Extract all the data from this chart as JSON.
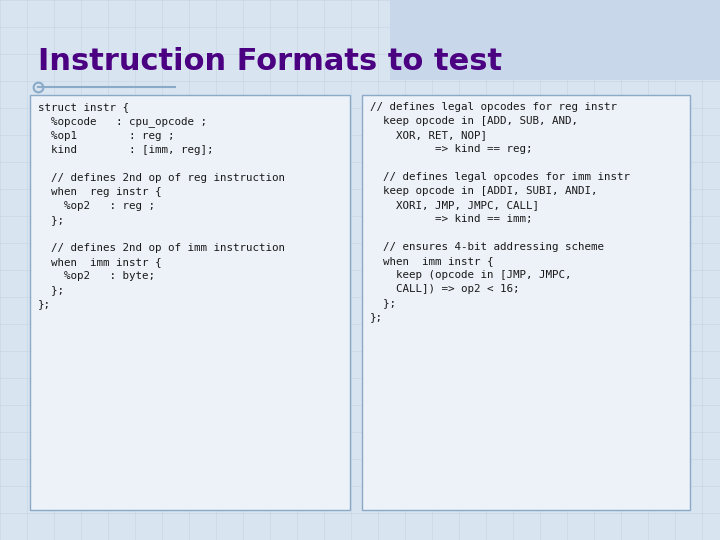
{
  "title": "Instruction Formats to test",
  "title_color": "#4B0082",
  "title_fontsize": 22,
  "bg_color": "#d8e4f0",
  "box_bg": "#edf2f8",
  "box_border": "#8aaac8",
  "grid_color": "#c5d5e5",
  "code_color": "#1a1a1a",
  "code_fontsize": 7.8,
  "top_right_color": "#c8d8ea",
  "left_box_text": [
    "struct instr {",
    "  %opcode   : cpu_opcode ;",
    "  %op1        : reg ;",
    "  kind        : [imm, reg];",
    "",
    "  // defines 2nd op of reg instruction",
    "  when  reg instr {",
    "    %op2   : reg ;",
    "  };",
    "",
    "  // defines 2nd op of imm instruction",
    "  when  imm instr {",
    "    %op2   : byte;",
    "  };",
    "};"
  ],
  "right_box_text": [
    "// defines legal opcodes for reg instr",
    "  keep opcode in [ADD, SUB, AND,",
    "    XOR, RET, NOP]",
    "          => kind == reg;",
    "",
    "  // defines legal opcodes for imm instr",
    "  keep opcode in [ADDI, SUBI, ANDI,",
    "    XORI, JMP, JMPC, CALL]",
    "          => kind == imm;",
    "",
    "  // ensures 4-bit addressing scheme",
    "  when  imm instr {",
    "    keep (opcode in [JMP, JMPC,",
    "    CALL]) => op2 < 16;",
    "  };",
    "};"
  ]
}
